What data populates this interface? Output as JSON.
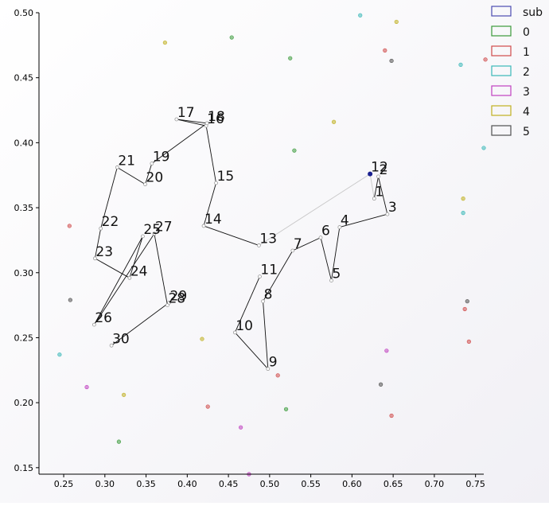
{
  "chart_data": {
    "type": "scatter",
    "xlim": [
      0.22,
      0.76
    ],
    "ylim": [
      0.145,
      0.5
    ],
    "x_ticks": [
      0.25,
      0.3,
      0.35,
      0.4,
      0.45,
      0.5,
      0.55,
      0.6,
      0.65,
      0.7,
      0.75
    ],
    "x_tick_labels": [
      "0.25",
      "0.30",
      "0.35",
      "0.40",
      "0.45",
      "0.50",
      "0.55",
      "0.60",
      "0.65",
      "0.70",
      "0.75"
    ],
    "y_ticks": [
      0.15,
      0.2,
      0.25,
      0.3,
      0.35,
      0.4,
      0.45,
      0.5
    ],
    "y_tick_labels": [
      "0.15",
      "0.20",
      "0.25",
      "0.30",
      "0.35",
      "0.40",
      "0.45",
      "0.50"
    ],
    "grid": false,
    "legend": {
      "placement": "top-right",
      "entries": [
        {
          "label": "sub",
          "color": "#4a4ab0"
        },
        {
          "label": "0",
          "color": "#3a9a3a"
        },
        {
          "label": "1",
          "color": "#d04a4a"
        },
        {
          "label": "2",
          "color": "#3ab8b8"
        },
        {
          "label": "3",
          "color": "#c040c0"
        },
        {
          "label": "4",
          "color": "#c0b020"
        },
        {
          "label": "5",
          "color": "#505050"
        }
      ]
    },
    "path": {
      "labels": [
        "1",
        "2",
        "3",
        "4",
        "5",
        "6",
        "7",
        "8",
        "9",
        "10",
        "11",
        "12",
        "13",
        "14",
        "15",
        "16",
        "17",
        "18",
        "19",
        "20",
        "21",
        "22",
        "23",
        "24",
        "25",
        "26",
        "27",
        "28",
        "29",
        "30"
      ],
      "x": [
        0.627,
        0.632,
        0.643,
        0.585,
        0.575,
        0.562,
        0.528,
        0.492,
        0.498,
        0.458,
        0.488,
        0.622,
        0.487,
        0.42,
        0.435,
        0.423,
        0.387,
        0.424,
        0.357,
        0.349,
        0.315,
        0.295,
        0.288,
        0.33,
        0.346,
        0.287,
        0.36,
        0.376,
        0.378,
        0.308
      ],
      "y": [
        0.357,
        0.374,
        0.345,
        0.335,
        0.294,
        0.327,
        0.317,
        0.278,
        0.226,
        0.254,
        0.297,
        0.376,
        0.321,
        0.336,
        0.369,
        0.413,
        0.418,
        0.415,
        0.384,
        0.368,
        0.381,
        0.334,
        0.311,
        0.296,
        0.328,
        0.26,
        0.33,
        0.275,
        0.277,
        0.244
      ],
      "highlight_index": 11,
      "highlight_color": "#1a2090"
    },
    "scatter_points": [
      {
        "x": 0.373,
        "y": 0.477,
        "c": "#c0b020"
      },
      {
        "x": 0.454,
        "y": 0.481,
        "c": "#3a9a3a"
      },
      {
        "x": 0.525,
        "y": 0.465,
        "c": "#3a9a3a"
      },
      {
        "x": 0.61,
        "y": 0.498,
        "c": "#3ab8b8"
      },
      {
        "x": 0.654,
        "y": 0.493,
        "c": "#c0b020"
      },
      {
        "x": 0.64,
        "y": 0.471,
        "c": "#d04a4a"
      },
      {
        "x": 0.648,
        "y": 0.463,
        "c": "#505050"
      },
      {
        "x": 0.732,
        "y": 0.46,
        "c": "#3ab8b8"
      },
      {
        "x": 0.762,
        "y": 0.464,
        "c": "#d04a4a"
      },
      {
        "x": 0.578,
        "y": 0.416,
        "c": "#c0b020"
      },
      {
        "x": 0.53,
        "y": 0.394,
        "c": "#3a9a3a"
      },
      {
        "x": 0.76,
        "y": 0.396,
        "c": "#3ab8b8"
      },
      {
        "x": 0.735,
        "y": 0.357,
        "c": "#c0b020"
      },
      {
        "x": 0.735,
        "y": 0.346,
        "c": "#3ab8b8"
      },
      {
        "x": 0.257,
        "y": 0.336,
        "c": "#d04a4a"
      },
      {
        "x": 0.258,
        "y": 0.279,
        "c": "#505050"
      },
      {
        "x": 0.74,
        "y": 0.278,
        "c": "#505050"
      },
      {
        "x": 0.737,
        "y": 0.272,
        "c": "#d04a4a"
      },
      {
        "x": 0.742,
        "y": 0.247,
        "c": "#d04a4a"
      },
      {
        "x": 0.418,
        "y": 0.249,
        "c": "#c0b020"
      },
      {
        "x": 0.245,
        "y": 0.237,
        "c": "#3ab8b8"
      },
      {
        "x": 0.642,
        "y": 0.24,
        "c": "#c040c0"
      },
      {
        "x": 0.51,
        "y": 0.221,
        "c": "#d04a4a"
      },
      {
        "x": 0.635,
        "y": 0.214,
        "c": "#505050"
      },
      {
        "x": 0.278,
        "y": 0.212,
        "c": "#c040c0"
      },
      {
        "x": 0.323,
        "y": 0.206,
        "c": "#c0b020"
      },
      {
        "x": 0.425,
        "y": 0.197,
        "c": "#d04a4a"
      },
      {
        "x": 0.52,
        "y": 0.195,
        "c": "#3a9a3a"
      },
      {
        "x": 0.648,
        "y": 0.19,
        "c": "#d04a4a"
      },
      {
        "x": 0.465,
        "y": 0.181,
        "c": "#c040c0"
      },
      {
        "x": 0.317,
        "y": 0.17,
        "c": "#3a9a3a"
      },
      {
        "x": 0.475,
        "y": 0.145,
        "c": "#c040c0"
      }
    ]
  }
}
